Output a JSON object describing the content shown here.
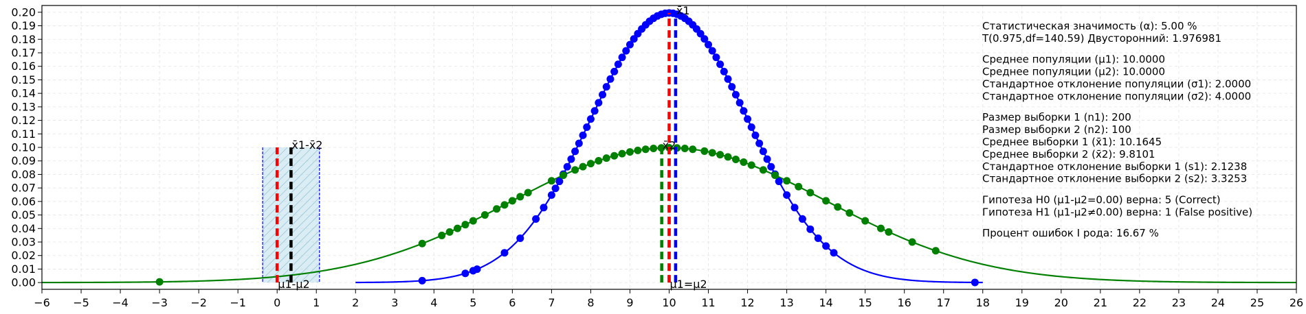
{
  "chart_data": {
    "type": "line",
    "title": "",
    "xlabel": "",
    "ylabel": "",
    "xlim": [
      -6,
      26
    ],
    "ylim": [
      -0.005,
      0.205
    ],
    "x_ticks": [
      "-6",
      "-5",
      "-4",
      "-3",
      "-2",
      "-1",
      "0",
      "1",
      "2",
      "3",
      "4",
      "5",
      "6",
      "7",
      "8",
      "9",
      "10",
      "11",
      "12",
      "13",
      "14",
      "15",
      "16",
      "17",
      "18",
      "19",
      "20",
      "21",
      "22",
      "23",
      "24",
      "25",
      "26"
    ],
    "y_ticks": [
      "0.00",
      "0.01",
      "0.02",
      "0.03",
      "0.04",
      "0.05",
      "0.06",
      "0.07",
      "0.08",
      "0.09",
      "0.10",
      "0.11",
      "0.12",
      "0.13",
      "0.14",
      "0.15",
      "0.16",
      "0.17",
      "0.18",
      "0.19",
      "0.20"
    ],
    "grid": true,
    "colors": {
      "pop1": "#0000ff",
      "pop2": "#008000",
      "mean_diff": "#000000",
      "null_mean": "#ff0000",
      "ci_fill": "#add8e6",
      "ci_edge": "#0000ff"
    },
    "series": [
      {
        "mu": 10.0,
        "sigma": 2.0,
        "x_range": [
          2,
          18
        ],
        "color": "#0000ff",
        "samples": [
          3.7,
          4.8,
          5.0,
          5.1,
          5.8,
          6.2,
          6.6,
          6.8,
          7.0,
          7.1,
          7.2,
          7.3,
          7.4,
          7.5,
          7.6,
          7.7,
          7.8,
          7.9,
          8.0,
          8.1,
          8.2,
          8.3,
          8.4,
          8.5,
          8.6,
          8.7,
          8.8,
          8.9,
          9.0,
          9.1,
          9.2,
          9.3,
          9.4,
          9.5,
          9.6,
          9.7,
          9.8,
          9.9,
          10.0,
          10.1,
          10.2,
          10.3,
          10.4,
          10.5,
          10.6,
          10.7,
          10.8,
          10.9,
          11.0,
          11.1,
          11.2,
          11.3,
          11.4,
          11.5,
          11.6,
          11.7,
          11.8,
          11.9,
          12.0,
          12.1,
          12.2,
          12.3,
          12.4,
          12.5,
          12.6,
          12.7,
          12.8,
          13.0,
          13.2,
          13.4,
          13.6,
          13.8,
          14.0,
          14.2,
          17.8
        ]
      },
      {
        "mu": 10.0,
        "sigma": 4.0,
        "x_range": [
          -6,
          26
        ],
        "color": "#008000",
        "samples": [
          -3.0,
          3.7,
          4.2,
          4.4,
          4.6,
          4.8,
          5.0,
          5.3,
          5.6,
          5.8,
          6.0,
          6.2,
          6.4,
          7.0,
          7.3,
          7.6,
          7.8,
          8.0,
          8.2,
          8.4,
          8.6,
          8.8,
          9.0,
          9.2,
          9.4,
          9.6,
          9.8,
          10.0,
          10.2,
          10.4,
          10.6,
          10.9,
          11.1,
          11.3,
          11.5,
          11.7,
          11.9,
          12.1,
          12.4,
          12.7,
          13.0,
          13.3,
          13.6,
          14.0,
          14.3,
          14.6,
          15.0,
          15.4,
          15.6,
          16.2,
          16.8
        ]
      }
    ],
    "vlines": [
      {
        "x": 10.1645,
        "y": [
          0,
          0.1995
        ],
        "color": "#0000ff",
        "label": "x̄1"
      },
      {
        "x": 10.0,
        "y": [
          0,
          0.1995
        ],
        "color": "#ff0000",
        "label": ""
      },
      {
        "x": 9.8101,
        "y": [
          0,
          0.0997
        ],
        "color": "#008000",
        "label": "x̄2"
      },
      {
        "x": 10.0,
        "y": [
          0,
          0.0997
        ],
        "color": "#ff0000",
        "label": ""
      },
      {
        "x": 0.3544,
        "y": [
          0,
          0.1
        ],
        "color": "#000000",
        "label": "x̄1-x̄2"
      },
      {
        "x": 0.0,
        "y": [
          0,
          0.1
        ],
        "color": "#ff0000",
        "label": ""
      }
    ],
    "confidence_interval": [
      -0.37,
      1.08
    ],
    "ci_height": 0.1,
    "axis_annotations": [
      {
        "x": 0.0,
        "text": "μ1-μ2"
      },
      {
        "x": 10.0,
        "text": "μ1=μ2"
      }
    ],
    "info_text": [
      "Статистическая значимость (α): 5.00 %",
      "T(0.975,df=140.59) Двусторонний: 1.976981",
      "",
      "Среднее популяции (μ1): 10.0000",
      "Среднее популяции (μ2): 10.0000",
      "Стандартное отклонение популяции (σ1): 2.0000",
      "Стандартное отклонение популяции (σ2): 4.0000",
      "",
      "Размер выборки 1 (n1): 200",
      "Размер выборки 2 (n2): 100",
      "Среднее выборки 1 (x̄1): 10.1645",
      "Среднее выборки 2 (x̄2): 9.8101",
      "Стандартное отклонение выборки 1 (s1): 2.1238",
      "Стандартное отклонение выборки 2 (s2): 3.3253",
      "",
      "Гипотеза H0 (μ1-μ2=0.00) верна: 5 (Correct)",
      "Гипотеза H1 (μ1-μ2≠0.00) верна: 1 (False positive)",
      "",
      "Процент ошибок I рода: 16.67 %"
    ]
  }
}
